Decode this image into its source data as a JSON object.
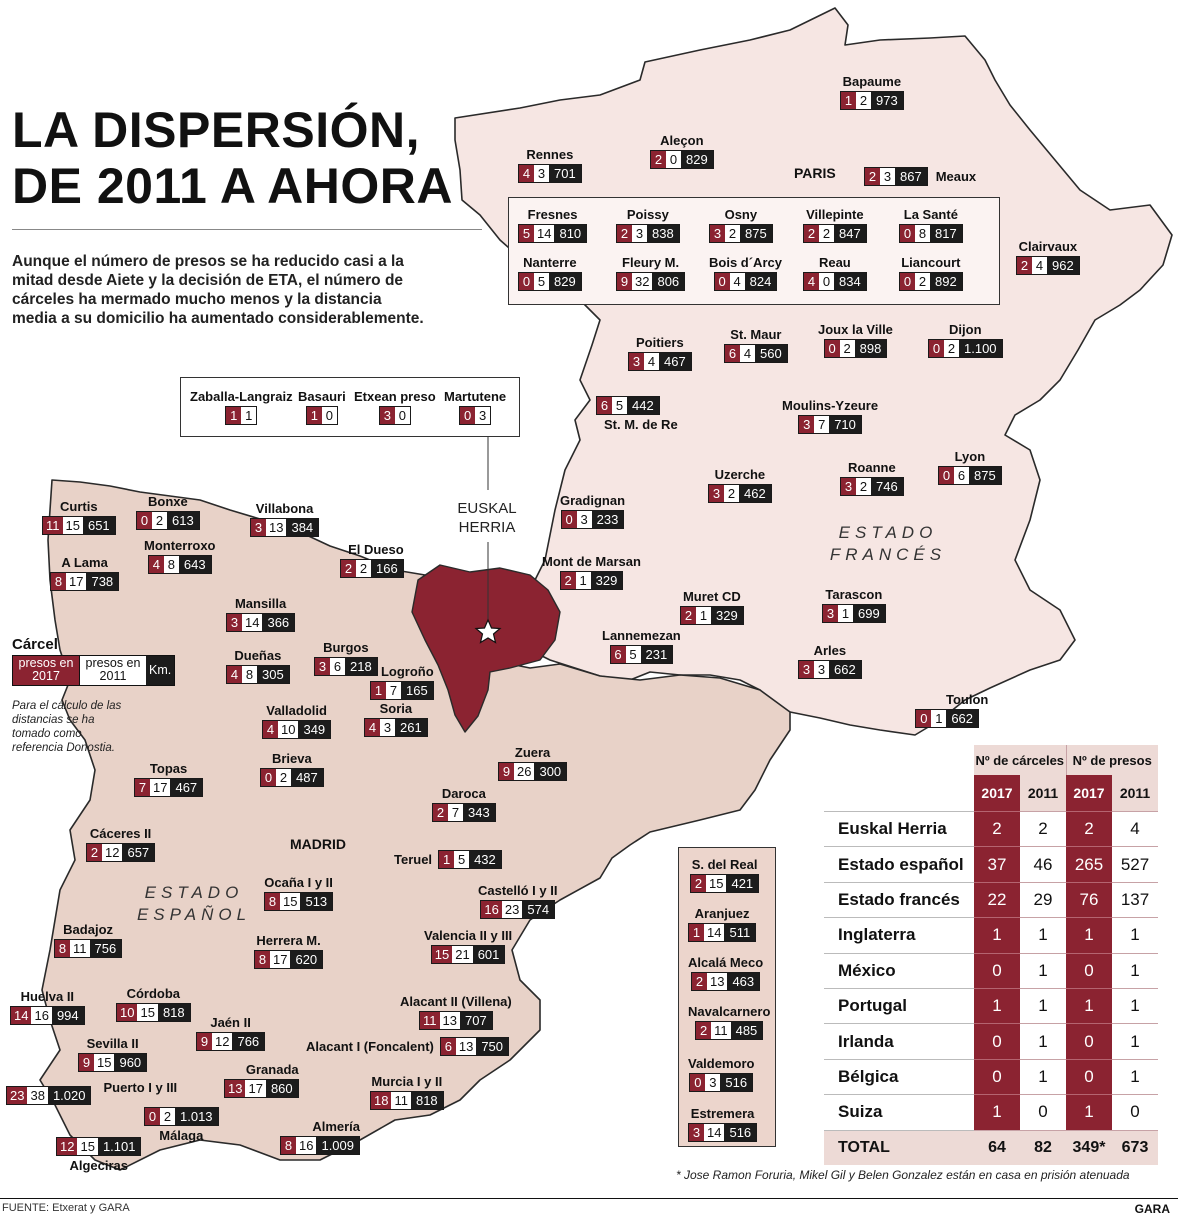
{
  "title_line1": "LA DISPERSIÓN,",
  "title_line2": "DE 2011 A AHORA",
  "intro": "Aunque el número de presos se ha reducido casi a la mitad desde Aiete y la decisión de ETA, el número de cárceles ha mermado mucho menos y la distancia media a su domicilio ha aumentado considerablemente.",
  "labels": {
    "paris": "PARIS",
    "madrid": "MADRID",
    "euskal_herria": "EUSKAL HERRIA",
    "estado_frances": "ESTADO FRANCÉS",
    "estado_espanol": "ESTADO ESPAÑOL"
  },
  "colors": {
    "presos_2017": "#8b2331",
    "presos_2011": "#ffffff",
    "km": "#1c1c1c",
    "spain_fill": "#e8d2c8",
    "france_fill": "#f6e6e3",
    "eh_fill": "#8b2331"
  },
  "legend": {
    "title": "Cárcel",
    "c2017": "presos en 2017",
    "c2011": "presos en 2011",
    "km": "Km.",
    "note": "Para el cálculo de las distancias se ha tomado como referencia Donostia."
  },
  "euskal_herria_prisons": [
    {
      "name": "Zaballa-Langraiz",
      "p2017": "1",
      "p2011": "1"
    },
    {
      "name": "Basauri",
      "p2017": "1",
      "p2011": "0"
    },
    {
      "name": "Etxean preso",
      "p2017": "3",
      "p2011": "0"
    },
    {
      "name": "Martutene",
      "p2017": "0",
      "p2011": "3"
    }
  ],
  "france_prisons": [
    {
      "name": "Bapaume",
      "p2017": "1",
      "p2011": "2",
      "km": "973"
    },
    {
      "name": "Aleçon",
      "p2017": "2",
      "p2011": "0",
      "km": "829"
    },
    {
      "name": "Rennes",
      "p2017": "4",
      "p2011": "3",
      "km": "701"
    },
    {
      "name": "Meaux",
      "p2017": "2",
      "p2011": "3",
      "km": "867"
    },
    {
      "name": "Clairvaux",
      "p2017": "2",
      "p2011": "4",
      "km": "962"
    },
    {
      "name": "Poitiers",
      "p2017": "3",
      "p2011": "4",
      "km": "467"
    },
    {
      "name": "St. Maur",
      "p2017": "6",
      "p2011": "4",
      "km": "560"
    },
    {
      "name": "Joux la Ville",
      "p2017": "0",
      "p2011": "2",
      "km": "898"
    },
    {
      "name": "Dijon",
      "p2017": "0",
      "p2011": "2",
      "km": "1.100"
    },
    {
      "name": "St. M. de Re",
      "p2017": "6",
      "p2011": "5",
      "km": "442"
    },
    {
      "name": "Moulins-Yzeure",
      "p2017": "3",
      "p2011": "7",
      "km": "710"
    },
    {
      "name": "Uzerche",
      "p2017": "3",
      "p2011": "2",
      "km": "462"
    },
    {
      "name": "Roanne",
      "p2017": "3",
      "p2011": "2",
      "km": "746"
    },
    {
      "name": "Lyon",
      "p2017": "0",
      "p2011": "6",
      "km": "875"
    },
    {
      "name": "Gradignan",
      "p2017": "0",
      "p2011": "3",
      "km": "233"
    },
    {
      "name": "Mont de Marsan",
      "p2017": "2",
      "p2011": "1",
      "km": "329"
    },
    {
      "name": "Muret CD",
      "p2017": "2",
      "p2011": "1",
      "km": "329"
    },
    {
      "name": "Tarascon",
      "p2017": "3",
      "p2011": "1",
      "km": "699"
    },
    {
      "name": "Lannemezan",
      "p2017": "6",
      "p2011": "5",
      "km": "231"
    },
    {
      "name": "Arles",
      "p2017": "3",
      "p2011": "3",
      "km": "662"
    },
    {
      "name": "Toulon",
      "p2017": "0",
      "p2011": "1",
      "km": "662"
    }
  ],
  "paris_prisons": [
    {
      "name": "Fresnes",
      "p2017": "5",
      "p2011": "14",
      "km": "810"
    },
    {
      "name": "Poissy",
      "p2017": "2",
      "p2011": "3",
      "km": "838"
    },
    {
      "name": "Osny",
      "p2017": "3",
      "p2011": "2",
      "km": "875"
    },
    {
      "name": "Villepinte",
      "p2017": "2",
      "p2011": "2",
      "km": "847"
    },
    {
      "name": "La Santé",
      "p2017": "0",
      "p2011": "8",
      "km": "817"
    },
    {
      "name": "Nanterre",
      "p2017": "0",
      "p2011": "5",
      "km": "829"
    },
    {
      "name": "Fleury M.",
      "p2017": "9",
      "p2011": "32",
      "km": "806"
    },
    {
      "name": "Bois d´Arcy",
      "p2017": "0",
      "p2011": "4",
      "km": "824"
    },
    {
      "name": "Reau",
      "p2017": "4",
      "p2011": "0",
      "km": "834"
    },
    {
      "name": "Liancourt",
      "p2017": "0",
      "p2011": "2",
      "km": "892"
    }
  ],
  "spain_prisons": [
    {
      "name": "Curtis",
      "p2017": "11",
      "p2011": "15",
      "km": "651"
    },
    {
      "name": "Bonxe",
      "p2017": "0",
      "p2011": "2",
      "km": "613"
    },
    {
      "name": "Villabona",
      "p2017": "3",
      "p2011": "13",
      "km": "384"
    },
    {
      "name": "A Lama",
      "p2017": "8",
      "p2011": "17",
      "km": "738"
    },
    {
      "name": "Monterroxo",
      "p2017": "4",
      "p2011": "8",
      "km": "643"
    },
    {
      "name": "El Dueso",
      "p2017": "2",
      "p2011": "2",
      "km": "166"
    },
    {
      "name": "Mansilla",
      "p2017": "3",
      "p2011": "14",
      "km": "366"
    },
    {
      "name": "Dueñas",
      "p2017": "4",
      "p2011": "8",
      "km": "305"
    },
    {
      "name": "Burgos",
      "p2017": "3",
      "p2011": "6",
      "km": "218"
    },
    {
      "name": "Logroño",
      "p2017": "1",
      "p2011": "7",
      "km": "165"
    },
    {
      "name": "Valladolid",
      "p2017": "4",
      "p2011": "10",
      "km": "349"
    },
    {
      "name": "Soria",
      "p2017": "4",
      "p2011": "3",
      "km": "261"
    },
    {
      "name": "Brieva",
      "p2017": "0",
      "p2011": "2",
      "km": "487"
    },
    {
      "name": "Zuera",
      "p2017": "9",
      "p2011": "26",
      "km": "300"
    },
    {
      "name": "Topas",
      "p2017": "7",
      "p2011": "17",
      "km": "467"
    },
    {
      "name": "Daroca",
      "p2017": "2",
      "p2011": "7",
      "km": "343"
    },
    {
      "name": "Cáceres II",
      "p2017": "2",
      "p2011": "12",
      "km": "657"
    },
    {
      "name": "Teruel",
      "p2017": "1",
      "p2011": "5",
      "km": "432"
    },
    {
      "name": "Ocaña I y II",
      "p2017": "8",
      "p2011": "15",
      "km": "513"
    },
    {
      "name": "Castelló I y II",
      "p2017": "16",
      "p2011": "23",
      "km": "574"
    },
    {
      "name": "Badajoz",
      "p2017": "8",
      "p2011": "11",
      "km": "756"
    },
    {
      "name": "Herrera M.",
      "p2017": "8",
      "p2011": "17",
      "km": "620"
    },
    {
      "name": "Valencia II y III",
      "p2017": "15",
      "p2011": "21",
      "km": "601"
    },
    {
      "name": "Huelva II",
      "p2017": "14",
      "p2011": "16",
      "km": "994"
    },
    {
      "name": "Córdoba",
      "p2017": "10",
      "p2011": "15",
      "km": "818"
    },
    {
      "name": "Alacant II (Villena)",
      "p2017": "11",
      "p2011": "13",
      "km": "707"
    },
    {
      "name": "Jaén II",
      "p2017": "9",
      "p2011": "12",
      "km": "766"
    },
    {
      "name": "Alacant I (Foncalent)",
      "p2017": "6",
      "p2011": "13",
      "km": "750"
    },
    {
      "name": "Sevilla II",
      "p2017": "9",
      "p2011": "15",
      "km": "960"
    },
    {
      "name": "Granada",
      "p2017": "13",
      "p2011": "17",
      "km": "860"
    },
    {
      "name": "Puerto I y III",
      "p2017": "23",
      "p2011": "38",
      "km": "1.020"
    },
    {
      "name": "Málaga",
      "p2017": "0",
      "p2011": "2",
      "km": "1.013"
    },
    {
      "name": "Murcia I y II",
      "p2017": "18",
      "p2011": "11",
      "km": "818"
    },
    {
      "name": "Algeciras",
      "p2017": "12",
      "p2011": "15",
      "km": "1.101"
    },
    {
      "name": "Almería",
      "p2017": "8",
      "p2011": "16",
      "km": "1.009"
    }
  ],
  "madrid_prisons": [
    {
      "name": "S. del Real",
      "p2017": "2",
      "p2011": "15",
      "km": "421"
    },
    {
      "name": "Aranjuez",
      "p2017": "1",
      "p2011": "14",
      "km": "511"
    },
    {
      "name": "Alcalá Meco",
      "p2017": "2",
      "p2011": "13",
      "km": "463"
    },
    {
      "name": "Navalcarnero",
      "p2017": "2",
      "p2011": "11",
      "km": "485"
    },
    {
      "name": "Valdemoro",
      "p2017": "0",
      "p2011": "3",
      "km": "516"
    },
    {
      "name": "Estremera",
      "p2017": "3",
      "p2011": "14",
      "km": "516"
    }
  ],
  "summary_table": {
    "header_carceles": "Nº de cárceles",
    "header_presos": "Nº de presos",
    "y2017": "2017",
    "y2011": "2011",
    "rows": [
      {
        "name": "Euskal Herria",
        "c2017": "2",
        "c2011": "2",
        "p2017": "2",
        "p2011": "4"
      },
      {
        "name": "Estado español",
        "c2017": "37",
        "c2011": "46",
        "p2017": "265",
        "p2011": "527"
      },
      {
        "name": "Estado francés",
        "c2017": "22",
        "c2011": "29",
        "p2017": "76",
        "p2011": "137"
      },
      {
        "name": "Inglaterra",
        "c2017": "1",
        "c2011": "1",
        "p2017": "1",
        "p2011": "1"
      },
      {
        "name": "México",
        "c2017": "0",
        "c2011": "1",
        "p2017": "0",
        "p2011": "1"
      },
      {
        "name": "Portugal",
        "c2017": "1",
        "c2011": "1",
        "p2017": "1",
        "p2011": "1"
      },
      {
        "name": "Irlanda",
        "c2017": "0",
        "c2011": "1",
        "p2017": "0",
        "p2011": "1"
      },
      {
        "name": "Bélgica",
        "c2017": "0",
        "c2011": "1",
        "p2017": "0",
        "p2011": "1"
      },
      {
        "name": "Suiza",
        "c2017": "1",
        "c2011": "0",
        "p2017": "1",
        "p2011": "0"
      }
    ],
    "total": {
      "name": "TOTAL",
      "c2017": "64",
      "c2011": "82",
      "p2017": "349*",
      "p2011": "673"
    }
  },
  "footnote": "* Jose Ramon Foruria, Mikel Gil y Belen Gonzalez están en casa en prisión atenuada",
  "source": "FUENTE: Etxerat y GARA",
  "brand": "GARA"
}
